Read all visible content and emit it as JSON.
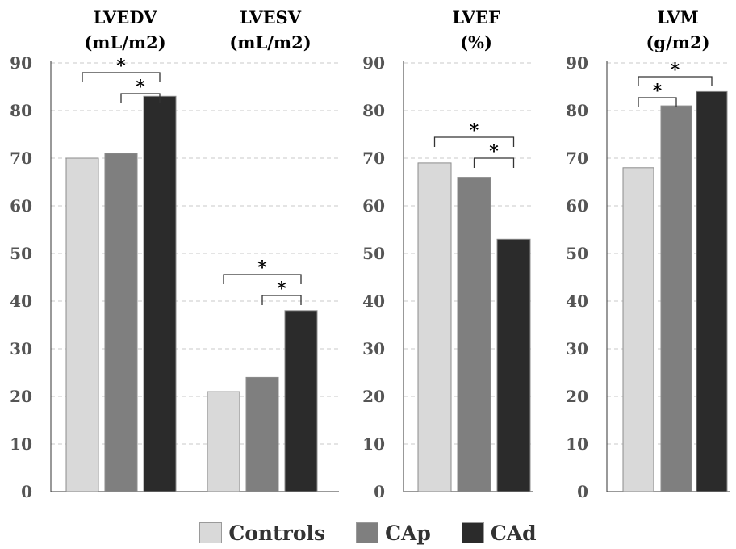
{
  "colors": {
    "controls": "#d9d9d9",
    "cap": "#7f7f7f",
    "cad": "#2b2b2b",
    "grid": "#c8c8c8",
    "axis": "#333333",
    "text": "#000000",
    "tick": "#555555"
  },
  "legend": [
    {
      "label": "Controls",
      "color": "#d9d9d9"
    },
    {
      "label": "CAp",
      "color": "#7f7f7f"
    },
    {
      "label": "CAd",
      "color": "#2b2b2b"
    }
  ],
  "chart_data": [
    {
      "type": "bar",
      "title": "LVEDV (mL/m2)",
      "title_lines": [
        "LVEDV",
        "(mL/m2)"
      ],
      "categories": [
        "Controls",
        "CAp",
        "CAd"
      ],
      "values": [
        70,
        71,
        83
      ],
      "ylim": [
        0,
        90
      ],
      "yticks": [
        "0",
        "10",
        "20",
        "30",
        "40",
        "50",
        "60",
        "70",
        "80",
        "90"
      ],
      "grid": true,
      "significance": [
        {
          "from": 0,
          "to": 2,
          "label": "*"
        },
        {
          "from": 1,
          "to": 2,
          "label": "*"
        }
      ]
    },
    {
      "type": "bar",
      "title": "LVESV (mL/m2)",
      "title_lines": [
        "LVESV",
        "(mL/m2)"
      ],
      "categories": [
        "Controls",
        "CAp",
        "CAd"
      ],
      "values": [
        21,
        24,
        38
      ],
      "ylim": [
        0,
        90
      ],
      "grid": true,
      "significance": [
        {
          "from": 0,
          "to": 2,
          "label": "*"
        },
        {
          "from": 1,
          "to": 2,
          "label": "*"
        }
      ]
    },
    {
      "type": "bar",
      "title": "LVEF (%)",
      "title_lines": [
        "LVEF",
        "(%)"
      ],
      "categories": [
        "Controls",
        "CAp",
        "CAd"
      ],
      "values": [
        69,
        66,
        53
      ],
      "ylim": [
        0,
        90
      ],
      "yticks": [
        "0",
        "10",
        "20",
        "30",
        "40",
        "50",
        "60",
        "70",
        "80",
        "90"
      ],
      "grid": true,
      "significance": [
        {
          "from": 0,
          "to": 2,
          "label": "*"
        },
        {
          "from": 1,
          "to": 2,
          "label": "*"
        }
      ]
    },
    {
      "type": "bar",
      "title": "LVM (g/m2)",
      "title_lines": [
        "LVM",
        "(g/m2)"
      ],
      "categories": [
        "Controls",
        "CAp",
        "CAd"
      ],
      "values": [
        68,
        81,
        84
      ],
      "ylim": [
        0,
        90
      ],
      "yticks": [
        "0",
        "10",
        "20",
        "30",
        "40",
        "50",
        "60",
        "70",
        "80",
        "90"
      ],
      "grid": true,
      "significance": [
        {
          "from": 0,
          "to": 1,
          "label": "*"
        },
        {
          "from": 0,
          "to": 2,
          "label": "*"
        }
      ]
    }
  ]
}
